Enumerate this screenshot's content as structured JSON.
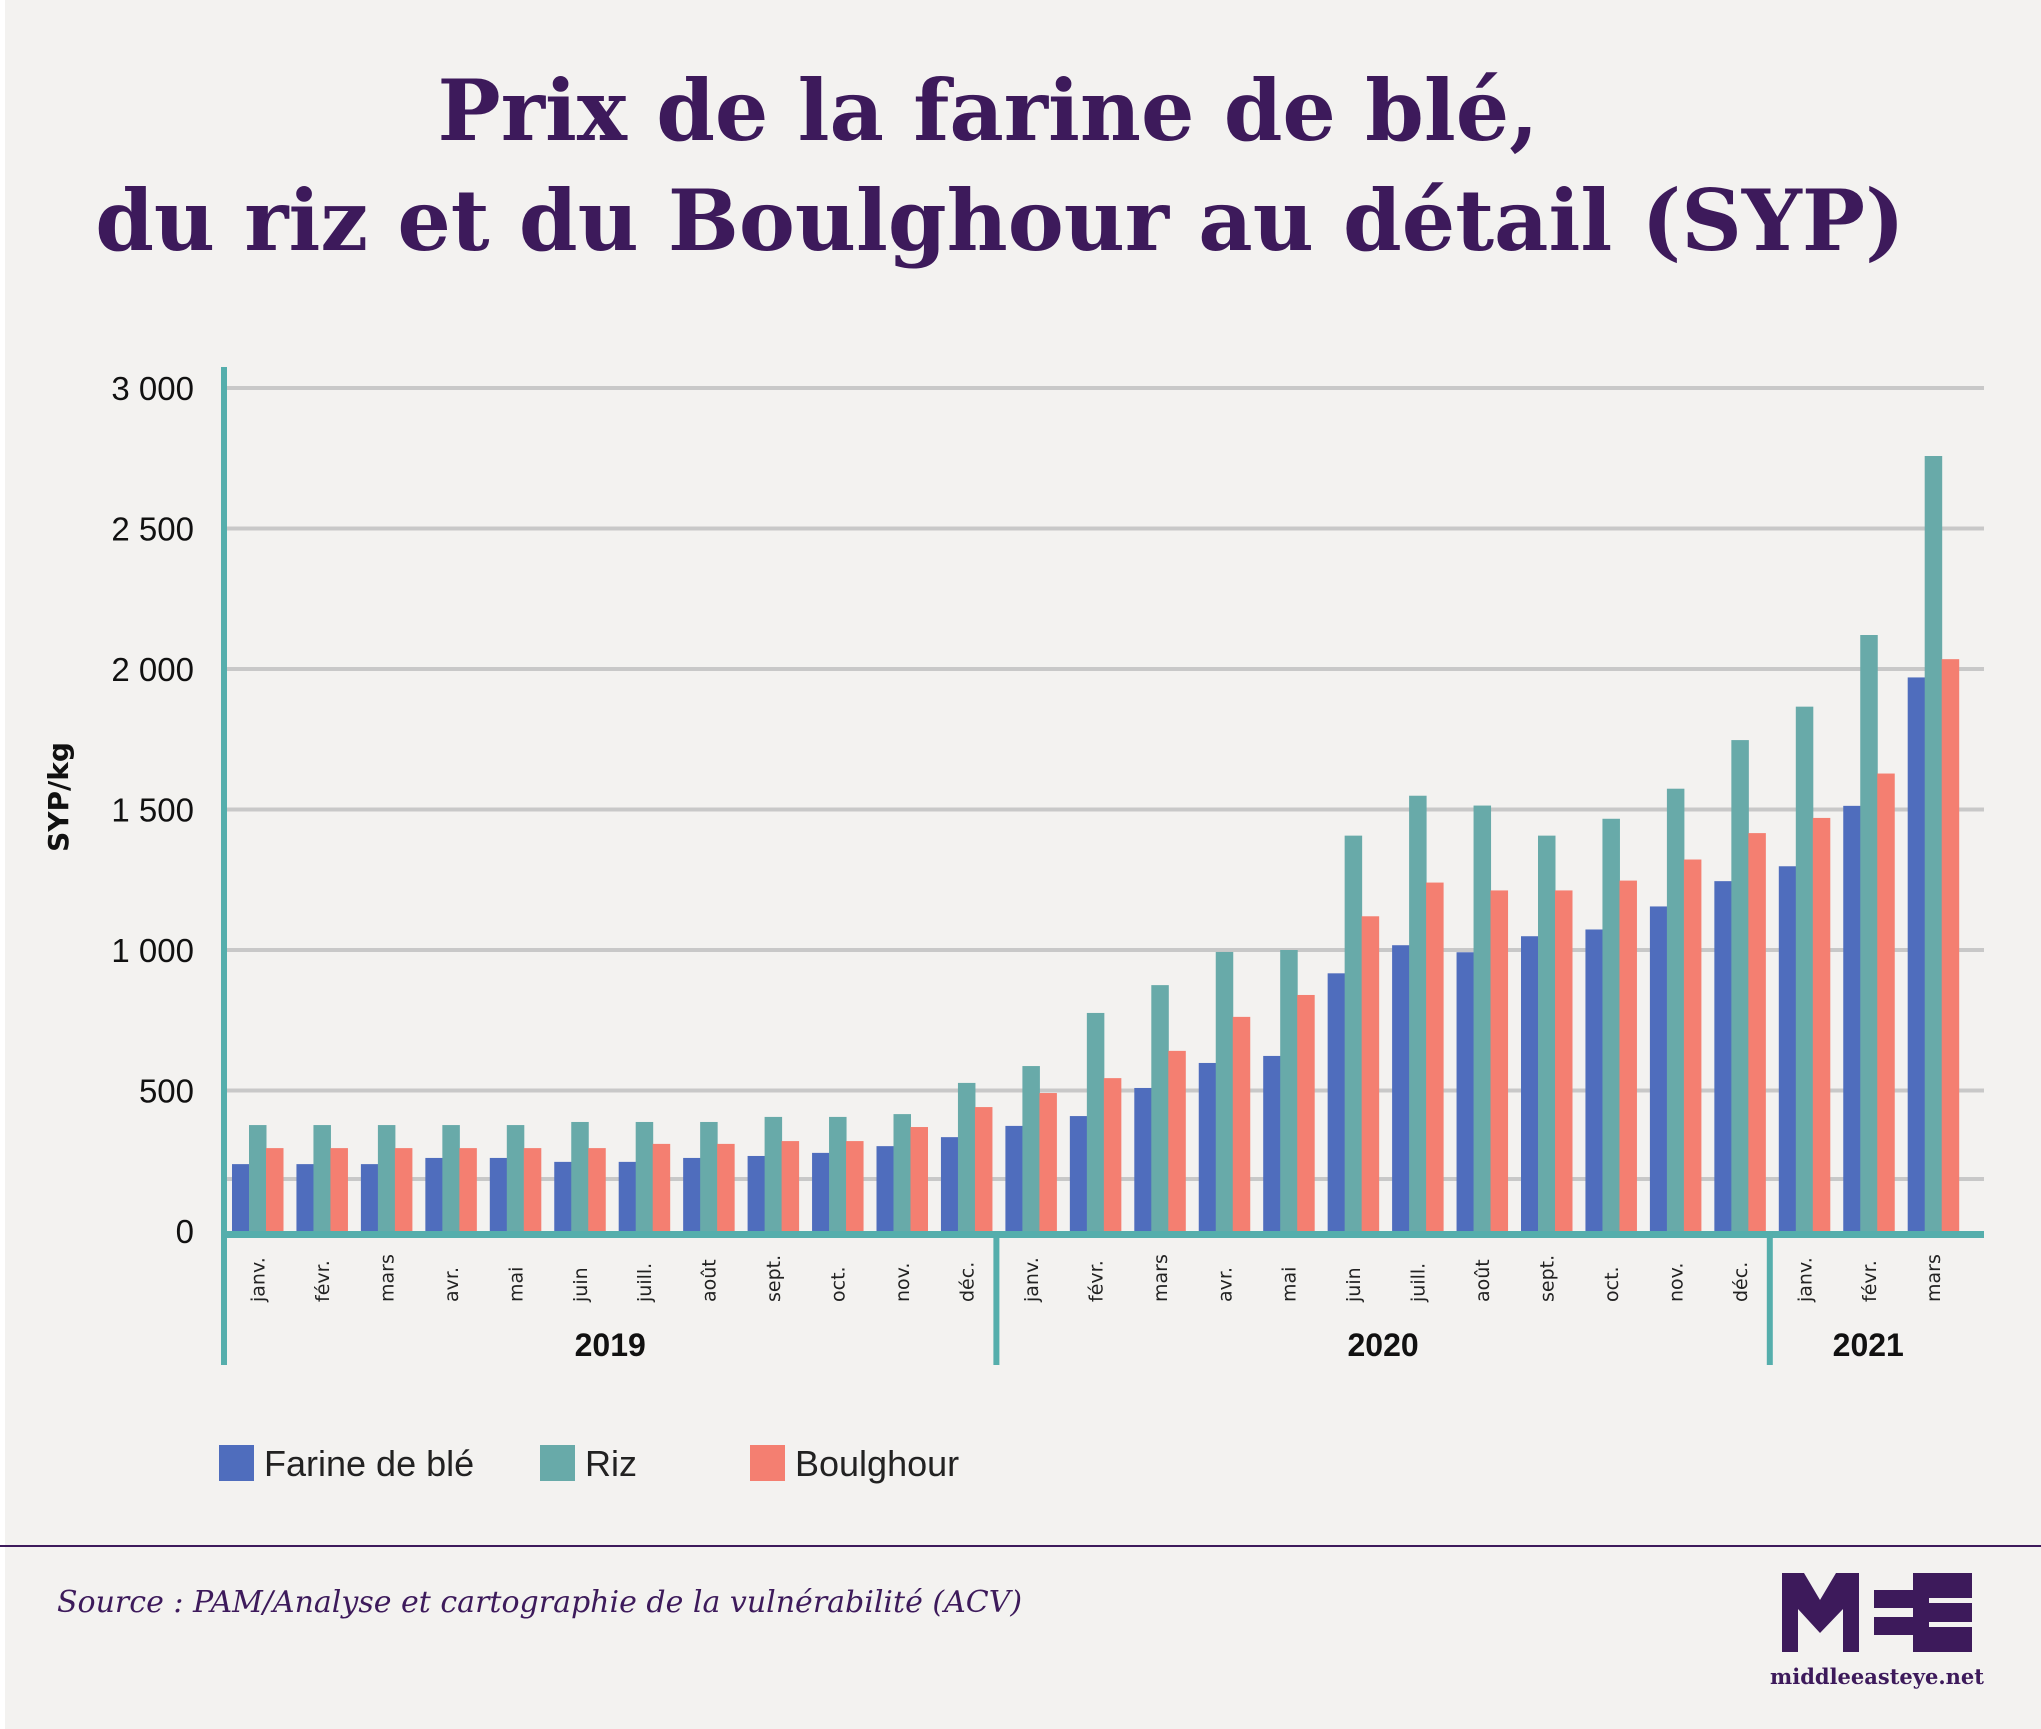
{
  "colors": {
    "background": "#f3f2f0",
    "title": "#3d1a5b",
    "axis": "#55aeac",
    "grid": "#c8c8c8",
    "farine": "#4f6dbd",
    "riz": "#68aaa9",
    "boulghour": "#f47f71",
    "divider": "#3d1a5b"
  },
  "footer": {
    "source": "Source : PAM/Analyse et cartographie de la vulnérabilité (ACV)",
    "logo_mark": "MEE",
    "logo_url_text": "middleeasteye.net"
  },
  "chart_data": {
    "type": "bar",
    "title": "Prix de la farine de blé, du riz et du Boulghour au détail (SYP)",
    "title_lines": [
      "Prix de la farine de blé,",
      "du riz et du Boulghour au détail (SYP)"
    ],
    "xlabel": "",
    "ylabel": "SYP/kg",
    "ylim": [
      0,
      3000
    ],
    "yticks": [
      0,
      500,
      1000,
      1500,
      2000,
      2500,
      3000
    ],
    "ytick_labels": [
      "0",
      "500",
      "1 000",
      "1 500",
      "2 000",
      "2 500",
      "3 000"
    ],
    "extra_gridline": 185,
    "grid": true,
    "legend_position": "bottom-left",
    "categories": [
      "janv.",
      "févr.",
      "mars",
      "avr.",
      "mai",
      "juin",
      "juill.",
      "août",
      "sept.",
      "oct.",
      "nov.",
      "déc.",
      "janv.",
      "févr.",
      "mars",
      "avr.",
      "mai",
      "juin",
      "juill.",
      "août",
      "sept.",
      "oct.",
      "nov.",
      "déc.",
      "janv.",
      "févr.",
      "mars"
    ],
    "year_groups": [
      {
        "label": "2019",
        "start": 0,
        "count": 12
      },
      {
        "label": "2020",
        "start": 12,
        "count": 12
      },
      {
        "label": "2021",
        "start": 24,
        "count": 3
      }
    ],
    "series": [
      {
        "name": "Farine de blé",
        "color_key": "farine",
        "values": [
          238,
          238,
          238,
          260,
          260,
          246,
          246,
          260,
          267,
          278,
          302,
          334,
          374,
          409,
          509,
          598,
          623,
          917,
          1017,
          992,
          1049,
          1073,
          1155,
          1245,
          1298,
          1513,
          1970
        ]
      },
      {
        "name": "Riz",
        "color_key": "riz",
        "values": [
          377,
          377,
          377,
          377,
          377,
          388,
          388,
          388,
          406,
          406,
          416,
          527,
          587,
          776,
          875,
          993,
          1000,
          1407,
          1549,
          1514,
          1407,
          1467,
          1574,
          1747,
          1866,
          2121,
          2758
        ]
      },
      {
        "name": "Boulghour",
        "color_key": "boulghour",
        "values": [
          295,
          295,
          295,
          295,
          295,
          295,
          310,
          310,
          320,
          320,
          370,
          441,
          491,
          544,
          641,
          762,
          840,
          1120,
          1240,
          1212,
          1212,
          1247,
          1322,
          1416,
          1470,
          1628,
          2035
        ]
      }
    ]
  }
}
